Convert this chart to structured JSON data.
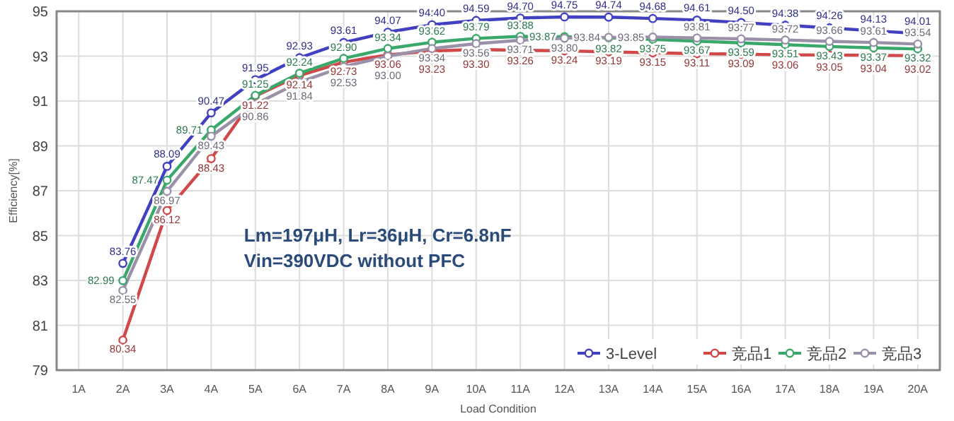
{
  "chart_data": {
    "type": "line",
    "ylabel": "Efficiency[%]",
    "xlabel": "Load Condition",
    "categories": [
      "1A",
      "2A",
      "3A",
      "4A",
      "5A",
      "6A",
      "7A",
      "8A",
      "9A",
      "10A",
      "11A",
      "12A",
      "13A",
      "14A",
      "15A",
      "16A",
      "17A",
      "18A",
      "19A",
      "20A"
    ],
    "ylim": [
      79,
      95
    ],
    "yticks": [
      79,
      81,
      83,
      85,
      87,
      89,
      91,
      93,
      95
    ],
    "grid": true,
    "legend": "bottom right",
    "marker": "circle",
    "line_style": "solid",
    "annotations": [
      "Lm=197μH, Lr=36μH, Cr=6.8nF",
      "Vin=390VDC without PFC"
    ],
    "series": [
      {
        "name": "3-Level",
        "color": "#4040c0",
        "values": [
          null,
          83.76,
          88.09,
          90.47,
          91.95,
          92.93,
          93.61,
          94.07,
          94.4,
          94.59,
          94.7,
          94.75,
          94.74,
          94.68,
          94.61,
          94.5,
          94.38,
          94.26,
          94.13,
          94.01
        ],
        "value_labels": [
          null,
          "83.76",
          "88.09",
          "90.47",
          "91.95",
          "92.93",
          "93.61",
          "94.07",
          "94.40",
          "94.59",
          "94.70",
          "94.75",
          "94.74",
          "94.68",
          "94.61",
          "94.50",
          "94.38",
          "94.26",
          "94.13",
          "94.01"
        ]
      },
      {
        "name": "竞品1",
        "color": "#d04848",
        "values": [
          null,
          80.34,
          86.12,
          88.43,
          91.22,
          92.14,
          92.73,
          93.06,
          93.23,
          93.3,
          93.26,
          93.24,
          93.19,
          93.15,
          93.11,
          93.09,
          93.06,
          93.05,
          93.04,
          93.02
        ],
        "value_labels": [
          null,
          "80.34",
          "86.12",
          "88.43",
          "91.22",
          "92.14",
          "92.73",
          "93.06",
          "93.23",
          "93.30",
          "93.26",
          "93.24",
          "93.19",
          "93.15",
          "93.11",
          "93.09",
          "93.06",
          "93.05",
          "93.04",
          "93.02"
        ]
      },
      {
        "name": "竞品2",
        "color": "#3aa86a",
        "values": [
          null,
          82.99,
          87.47,
          89.71,
          91.25,
          92.24,
          92.9,
          93.34,
          93.62,
          93.79,
          93.88,
          93.87,
          93.82,
          93.75,
          93.67,
          93.59,
          93.51,
          93.43,
          93.37,
          93.32
        ],
        "value_labels": [
          null,
          "82.99",
          "87.47",
          "89.71",
          "91.25",
          "92.24",
          "92.90",
          "93.34",
          "93.62",
          "93.79",
          "93.88",
          "93.87",
          "93.82",
          "93.75",
          "93.67",
          "93.59",
          "93.51",
          "93.43",
          "93.37",
          "93.32"
        ]
      },
      {
        "name": "竞品3",
        "color": "#9a90a8",
        "values": [
          null,
          82.55,
          86.97,
          89.43,
          90.86,
          91.84,
          92.53,
          93.0,
          93.34,
          93.56,
          93.71,
          93.8,
          93.84,
          93.85,
          93.81,
          93.77,
          93.72,
          93.66,
          93.61,
          93.54
        ],
        "value_labels": [
          null,
          "82.55",
          "86.97",
          "89.43",
          "90.86",
          "91.84",
          "92.53",
          "93.00",
          "93.34",
          "93.56",
          "93.71",
          "93.80",
          "93.84",
          "93.85",
          "93.81",
          "93.77",
          "93.72",
          "93.66",
          "93.61",
          "93.54"
        ]
      }
    ]
  }
}
